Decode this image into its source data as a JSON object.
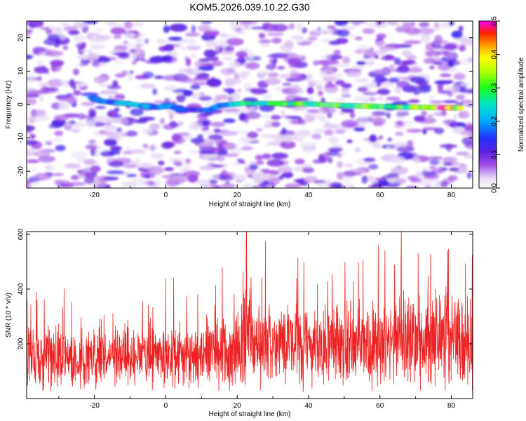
{
  "title": "KOM5.2026.039.10.22.G30",
  "colors": {
    "snr_line": "#ee2222",
    "ridge": "#22c8e6",
    "noise_blobs": "#8a3de0",
    "background": "#ffffff"
  },
  "colorbar": {
    "label": "Normalized spectral amplitude",
    "range": [
      0.0,
      0.5
    ],
    "ticks": [
      "0.0",
      "0.1",
      "0.2",
      "0.3",
      "0.4",
      "0.5"
    ],
    "colormap": "rainbow (white-purple-blue-cyan-green-yellow-red-magenta)"
  },
  "chart_data": [
    {
      "type": "heatmap",
      "xlabel": "Height of straight line (km)",
      "ylabel": "Frequency (Hz)",
      "xlim": [
        -39,
        86
      ],
      "ylim": [
        -25,
        25
      ],
      "xticks": [
        -20,
        0,
        20,
        40,
        60,
        80
      ],
      "yticks": [
        -20,
        -10,
        0,
        10,
        20
      ],
      "ridge": {
        "x": [
          -21,
          -18,
          -14,
          -10,
          -6,
          -2,
          1,
          4,
          8,
          12,
          15,
          18,
          22,
          30,
          40,
          50,
          60,
          70,
          76,
          80,
          83
        ],
        "y": [
          2.2,
          1.0,
          0.6,
          0.2,
          -0.5,
          -0.8,
          -0.3,
          -1.5,
          -1.6,
          -1.7,
          -0.3,
          0.0,
          0.4,
          0.3,
          0.2,
          -0.3,
          -0.6,
          -0.8,
          -0.9,
          -1.0,
          -1.0
        ],
        "amplitude": [
          0.15,
          0.2,
          0.18,
          0.22,
          0.2,
          0.18,
          0.2,
          0.15,
          0.15,
          0.17,
          0.2,
          0.2,
          0.26,
          0.28,
          0.3,
          0.3,
          0.3,
          0.32,
          0.45,
          0.42,
          0.3
        ]
      }
    },
    {
      "type": "line",
      "xlabel": "Height of straight line (km)",
      "ylabel": "SNR (10 * v/v)",
      "xlim": [
        -39,
        86
      ],
      "ylim": [
        0,
        610
      ],
      "xticks": [
        -20,
        0,
        20,
        40,
        60,
        80
      ],
      "yticks": [
        200,
        400,
        600
      ],
      "series_trend": {
        "x": [
          -39,
          -20,
          0,
          10,
          20,
          22,
          23,
          25,
          40,
          60,
          66,
          80,
          86
        ],
        "mean": [
          150,
          150,
          155,
          160,
          175,
          240,
          260,
          200,
          190,
          200,
          220,
          205,
          200
        ],
        "spread": [
          85,
          85,
          90,
          95,
          110,
          150,
          140,
          120,
          120,
          125,
          130,
          125,
          125
        ]
      },
      "notable_peaks": [
        {
          "x": 22.6,
          "y": 610
        },
        {
          "x": 66.0,
          "y": 608
        },
        {
          "x": 59.5,
          "y": 560
        },
        {
          "x": 79.0,
          "y": 540
        }
      ],
      "sample_count": 1800
    }
  ]
}
